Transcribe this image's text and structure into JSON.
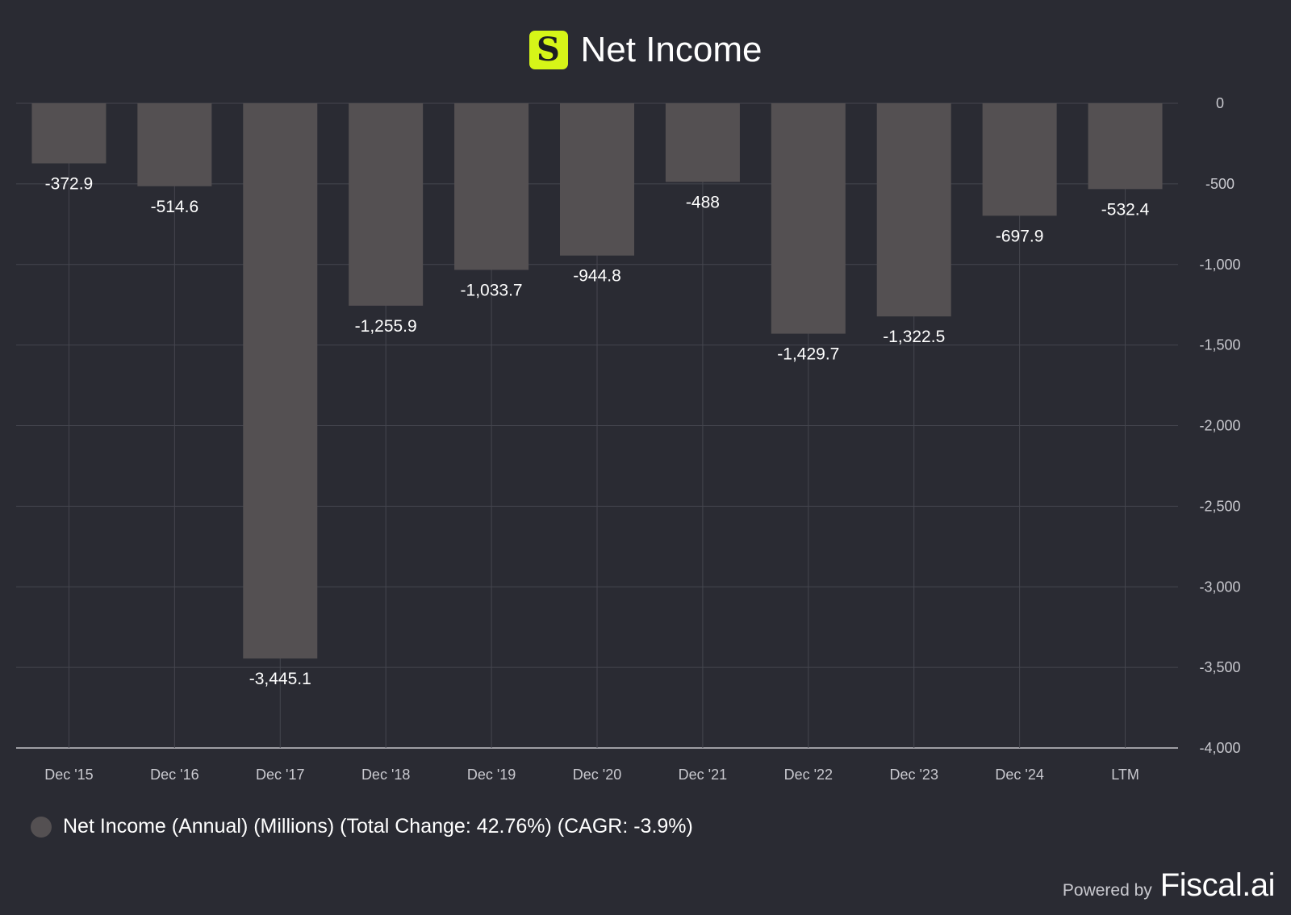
{
  "header": {
    "logo_letter": "S",
    "title": "Net Income"
  },
  "colors": {
    "background": "#2a2b33",
    "bar": "#545052",
    "grid": "#45464f",
    "logo": "#d6f518",
    "axis_text": "#c9c9cf",
    "label_text": "#ffffff"
  },
  "chart_data": {
    "type": "bar",
    "title": "Net Income",
    "categories": [
      "Dec '15",
      "Dec '16",
      "Dec '17",
      "Dec '18",
      "Dec '19",
      "Dec '20",
      "Dec '21",
      "Dec '22",
      "Dec '23",
      "Dec '24",
      "LTM"
    ],
    "values": [
      -372.9,
      -514.6,
      -3445.1,
      -1255.9,
      -1033.7,
      -944.8,
      -488,
      -1429.7,
      -1322.5,
      -697.9,
      -532.4
    ],
    "value_labels": [
      "-372.9",
      "-514.6",
      "-3,445.1",
      "-1,255.9",
      "-1,033.7",
      "-944.8",
      "-488",
      "-1,429.7",
      "-1,322.5",
      "-697.9",
      "-532.4"
    ],
    "ylim": [
      -4000,
      0
    ],
    "yticks": [
      0,
      -500,
      -1000,
      -1500,
      -2000,
      -2500,
      -3000,
      -3500,
      -4000
    ],
    "ytick_labels": [
      "0",
      "-500",
      "-1,000",
      "-1,500",
      "-2,000",
      "-2,500",
      "-3,000",
      "-3,500",
      "-4,000"
    ],
    "y_axis_side": "right",
    "grid": true,
    "series_name": "Net Income (Annual) (Millions) (Total Change: 42.76%) (CAGR: -3.9%)"
  },
  "legend": {
    "label": "Net Income (Annual) (Millions) (Total Change: 42.76%) (CAGR: -3.9%)"
  },
  "footer": {
    "powered_by": "Powered by",
    "brand": "Fiscal.ai"
  }
}
